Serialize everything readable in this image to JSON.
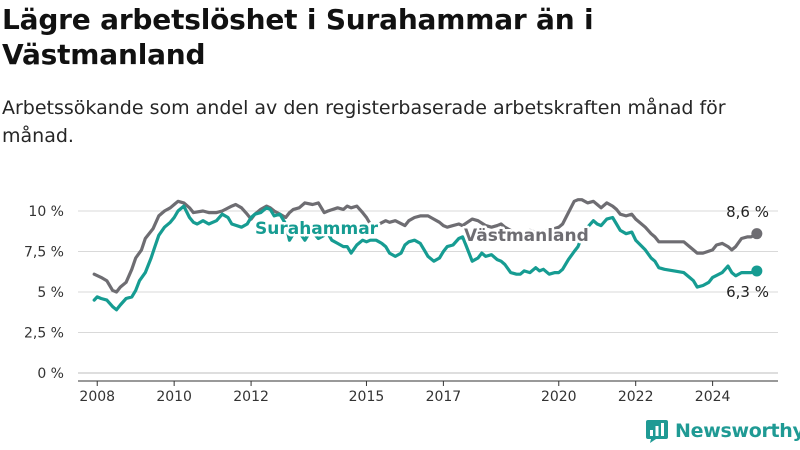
{
  "header": {
    "title": "Lägre arbetslöshet i Surahammar än i Västmanland",
    "subtitle": "Arbetssökande som andel av den registerbaserade arbetskraften månad för månad."
  },
  "brand": {
    "name": "Newsworthy"
  },
  "colors": {
    "surahammar": "#169c92",
    "vastmanland": "#6e6d72",
    "grid": "#d9d9d9",
    "axis": "#333333"
  },
  "chart_data": {
    "type": "line",
    "xlim": [
      2007.5,
      2025.7
    ],
    "ylim": [
      0,
      10.8
    ],
    "x_ticks": [
      {
        "value": 2008,
        "label": "2008"
      },
      {
        "value": 2010,
        "label": "2010"
      },
      {
        "value": 2012,
        "label": "2012"
      },
      {
        "value": 2015,
        "label": "2015"
      },
      {
        "value": 2017,
        "label": "2017"
      },
      {
        "value": 2020,
        "label": "2020"
      },
      {
        "value": 2022,
        "label": "2022"
      },
      {
        "value": 2024,
        "label": "2024"
      }
    ],
    "y_ticks": [
      {
        "value": 0,
        "label": "0 %"
      },
      {
        "value": 2.5,
        "label": "2,5 %"
      },
      {
        "value": 5,
        "label": "5 %"
      },
      {
        "value": 7.5,
        "label": "7,5 %"
      },
      {
        "value": 10,
        "label": "10 %"
      }
    ],
    "series": [
      {
        "name": "Västmanland",
        "color": "#6e6d72",
        "end_label": "8,6 %",
        "points": [
          [
            2007.92,
            6.1
          ],
          [
            2008.1,
            5.9
          ],
          [
            2008.25,
            5.7
          ],
          [
            2008.4,
            5.1
          ],
          [
            2008.5,
            5.0
          ],
          [
            2008.6,
            5.3
          ],
          [
            2008.75,
            5.6
          ],
          [
            2008.9,
            6.4
          ],
          [
            2009.0,
            7.1
          ],
          [
            2009.15,
            7.6
          ],
          [
            2009.25,
            8.3
          ],
          [
            2009.45,
            8.9
          ],
          [
            2009.6,
            9.7
          ],
          [
            2009.75,
            10.0
          ],
          [
            2009.9,
            10.2
          ],
          [
            2010.0,
            10.4
          ],
          [
            2010.1,
            10.6
          ],
          [
            2010.25,
            10.5
          ],
          [
            2010.4,
            10.2
          ],
          [
            2010.5,
            9.9
          ],
          [
            2010.75,
            10.0
          ],
          [
            2010.9,
            9.9
          ],
          [
            2011.1,
            9.9
          ],
          [
            2011.25,
            10.0
          ],
          [
            2011.5,
            10.3
          ],
          [
            2011.6,
            10.4
          ],
          [
            2011.75,
            10.2
          ],
          [
            2011.9,
            9.8
          ],
          [
            2012.0,
            9.5
          ],
          [
            2012.1,
            9.8
          ],
          [
            2012.25,
            10.1
          ],
          [
            2012.4,
            10.3
          ],
          [
            2012.5,
            10.2
          ],
          [
            2012.6,
            10.0
          ],
          [
            2012.75,
            9.8
          ],
          [
            2012.9,
            9.6
          ],
          [
            2013.0,
            9.9
          ],
          [
            2013.1,
            10.1
          ],
          [
            2013.25,
            10.2
          ],
          [
            2013.4,
            10.5
          ],
          [
            2013.6,
            10.4
          ],
          [
            2013.75,
            10.5
          ],
          [
            2013.9,
            9.9
          ],
          [
            2014.0,
            10.0
          ],
          [
            2014.25,
            10.2
          ],
          [
            2014.4,
            10.1
          ],
          [
            2014.5,
            10.3
          ],
          [
            2014.6,
            10.2
          ],
          [
            2014.75,
            10.3
          ],
          [
            2014.9,
            9.9
          ],
          [
            2015.0,
            9.6
          ],
          [
            2015.1,
            9.2
          ],
          [
            2015.25,
            9.1
          ],
          [
            2015.5,
            9.4
          ],
          [
            2015.6,
            9.3
          ],
          [
            2015.75,
            9.4
          ],
          [
            2016.0,
            9.1
          ],
          [
            2016.1,
            9.4
          ],
          [
            2016.25,
            9.6
          ],
          [
            2016.4,
            9.7
          ],
          [
            2016.6,
            9.7
          ],
          [
            2016.75,
            9.5
          ],
          [
            2016.9,
            9.3
          ],
          [
            2017.0,
            9.1
          ],
          [
            2017.1,
            9.0
          ],
          [
            2017.25,
            9.1
          ],
          [
            2017.4,
            9.2
          ],
          [
            2017.5,
            9.1
          ],
          [
            2017.75,
            9.5
          ],
          [
            2017.9,
            9.4
          ],
          [
            2018.1,
            9.1
          ],
          [
            2018.25,
            9.0
          ],
          [
            2018.4,
            9.1
          ],
          [
            2018.5,
            9.2
          ],
          [
            2018.6,
            9.0
          ],
          [
            2018.75,
            8.8
          ],
          [
            2018.9,
            8.6
          ],
          [
            2019.0,
            8.5
          ],
          [
            2019.25,
            8.8
          ],
          [
            2019.5,
            8.6
          ],
          [
            2019.75,
            8.8
          ],
          [
            2020.0,
            9.0
          ],
          [
            2020.1,
            9.2
          ],
          [
            2020.25,
            9.9
          ],
          [
            2020.4,
            10.6
          ],
          [
            2020.5,
            10.7
          ],
          [
            2020.6,
            10.7
          ],
          [
            2020.75,
            10.5
          ],
          [
            2020.9,
            10.6
          ],
          [
            2021.0,
            10.4
          ],
          [
            2021.1,
            10.2
          ],
          [
            2021.25,
            10.5
          ],
          [
            2021.4,
            10.3
          ],
          [
            2021.5,
            10.1
          ],
          [
            2021.6,
            9.8
          ],
          [
            2021.75,
            9.7
          ],
          [
            2021.9,
            9.8
          ],
          [
            2022.0,
            9.5
          ],
          [
            2022.25,
            9.0
          ],
          [
            2022.4,
            8.6
          ],
          [
            2022.5,
            8.4
          ],
          [
            2022.6,
            8.1
          ],
          [
            2022.75,
            8.1
          ],
          [
            2023.0,
            8.1
          ],
          [
            2023.25,
            8.1
          ],
          [
            2023.4,
            7.8
          ],
          [
            2023.5,
            7.6
          ],
          [
            2023.6,
            7.4
          ],
          [
            2023.75,
            7.4
          ],
          [
            2024.0,
            7.6
          ],
          [
            2024.1,
            7.9
          ],
          [
            2024.25,
            8.0
          ],
          [
            2024.4,
            7.8
          ],
          [
            2024.5,
            7.6
          ],
          [
            2024.6,
            7.8
          ],
          [
            2024.75,
            8.3
          ],
          [
            2024.9,
            8.4
          ],
          [
            2025.0,
            8.4
          ],
          [
            2025.15,
            8.6
          ]
        ]
      },
      {
        "name": "Surahammar",
        "color": "#169c92",
        "end_label": "6,3 %",
        "points": [
          [
            2007.92,
            4.5
          ],
          [
            2008.0,
            4.7
          ],
          [
            2008.1,
            4.6
          ],
          [
            2008.25,
            4.5
          ],
          [
            2008.4,
            4.1
          ],
          [
            2008.5,
            3.9
          ],
          [
            2008.6,
            4.2
          ],
          [
            2008.75,
            4.6
          ],
          [
            2008.9,
            4.7
          ],
          [
            2009.0,
            5.1
          ],
          [
            2009.1,
            5.7
          ],
          [
            2009.25,
            6.2
          ],
          [
            2009.4,
            7.1
          ],
          [
            2009.5,
            7.8
          ],
          [
            2009.6,
            8.5
          ],
          [
            2009.75,
            9.0
          ],
          [
            2009.9,
            9.3
          ],
          [
            2010.0,
            9.6
          ],
          [
            2010.1,
            10.0
          ],
          [
            2010.25,
            10.3
          ],
          [
            2010.4,
            9.6
          ],
          [
            2010.5,
            9.3
          ],
          [
            2010.6,
            9.2
          ],
          [
            2010.75,
            9.4
          ],
          [
            2010.9,
            9.2
          ],
          [
            2011.1,
            9.4
          ],
          [
            2011.25,
            9.8
          ],
          [
            2011.4,
            9.6
          ],
          [
            2011.5,
            9.2
          ],
          [
            2011.75,
            9.0
          ],
          [
            2011.9,
            9.2
          ],
          [
            2012.0,
            9.6
          ],
          [
            2012.1,
            9.8
          ],
          [
            2012.25,
            9.9
          ],
          [
            2012.4,
            10.2
          ],
          [
            2012.5,
            10.1
          ],
          [
            2012.6,
            9.7
          ],
          [
            2012.75,
            9.8
          ],
          [
            2012.9,
            9.2
          ],
          [
            2013.0,
            8.2
          ],
          [
            2013.1,
            8.6
          ],
          [
            2013.25,
            8.7
          ],
          [
            2013.4,
            8.2
          ],
          [
            2013.5,
            8.6
          ],
          [
            2013.6,
            8.7
          ],
          [
            2013.75,
            8.3
          ],
          [
            2013.9,
            8.5
          ],
          [
            2014.0,
            8.6
          ],
          [
            2014.1,
            8.2
          ],
          [
            2014.25,
            8.0
          ],
          [
            2014.4,
            7.8
          ],
          [
            2014.5,
            7.8
          ],
          [
            2014.6,
            7.4
          ],
          [
            2014.75,
            7.9
          ],
          [
            2014.9,
            8.2
          ],
          [
            2015.0,
            8.1
          ],
          [
            2015.1,
            8.2
          ],
          [
            2015.25,
            8.2
          ],
          [
            2015.4,
            8.0
          ],
          [
            2015.5,
            7.8
          ],
          [
            2015.6,
            7.4
          ],
          [
            2015.75,
            7.2
          ],
          [
            2015.9,
            7.4
          ],
          [
            2016.0,
            7.9
          ],
          [
            2016.1,
            8.1
          ],
          [
            2016.25,
            8.2
          ],
          [
            2016.4,
            8.0
          ],
          [
            2016.5,
            7.6
          ],
          [
            2016.6,
            7.2
          ],
          [
            2016.75,
            6.9
          ],
          [
            2016.9,
            7.1
          ],
          [
            2017.0,
            7.5
          ],
          [
            2017.1,
            7.8
          ],
          [
            2017.25,
            7.9
          ],
          [
            2017.4,
            8.3
          ],
          [
            2017.5,
            8.4
          ],
          [
            2017.6,
            7.8
          ],
          [
            2017.75,
            6.9
          ],
          [
            2017.9,
            7.1
          ],
          [
            2018.0,
            7.4
          ],
          [
            2018.1,
            7.2
          ],
          [
            2018.25,
            7.3
          ],
          [
            2018.4,
            7.0
          ],
          [
            2018.5,
            6.9
          ],
          [
            2018.6,
            6.7
          ],
          [
            2018.75,
            6.2
          ],
          [
            2018.9,
            6.1
          ],
          [
            2019.0,
            6.1
          ],
          [
            2019.1,
            6.3
          ],
          [
            2019.25,
            6.2
          ],
          [
            2019.4,
            6.5
          ],
          [
            2019.5,
            6.3
          ],
          [
            2019.6,
            6.4
          ],
          [
            2019.75,
            6.1
          ],
          [
            2019.9,
            6.2
          ],
          [
            2020.0,
            6.2
          ],
          [
            2020.1,
            6.4
          ],
          [
            2020.25,
            7.0
          ],
          [
            2020.4,
            7.5
          ],
          [
            2020.5,
            7.8
          ],
          [
            2020.6,
            8.4
          ],
          [
            2020.75,
            9.0
          ],
          [
            2020.9,
            9.4
          ],
          [
            2021.0,
            9.2
          ],
          [
            2021.1,
            9.1
          ],
          [
            2021.25,
            9.5
          ],
          [
            2021.4,
            9.6
          ],
          [
            2021.5,
            9.2
          ],
          [
            2021.6,
            8.8
          ],
          [
            2021.75,
            8.6
          ],
          [
            2021.9,
            8.7
          ],
          [
            2022.0,
            8.2
          ],
          [
            2022.25,
            7.6
          ],
          [
            2022.4,
            7.1
          ],
          [
            2022.5,
            6.9
          ],
          [
            2022.6,
            6.5
          ],
          [
            2022.75,
            6.4
          ],
          [
            2023.0,
            6.3
          ],
          [
            2023.25,
            6.2
          ],
          [
            2023.4,
            5.9
          ],
          [
            2023.5,
            5.7
          ],
          [
            2023.6,
            5.3
          ],
          [
            2023.75,
            5.4
          ],
          [
            2023.9,
            5.6
          ],
          [
            2024.0,
            5.9
          ],
          [
            2024.25,
            6.2
          ],
          [
            2024.4,
            6.6
          ],
          [
            2024.5,
            6.2
          ],
          [
            2024.6,
            6.0
          ],
          [
            2024.75,
            6.2
          ],
          [
            2025.0,
            6.2
          ],
          [
            2025.15,
            6.3
          ]
        ]
      }
    ],
    "legend": "inline labels on lines"
  }
}
